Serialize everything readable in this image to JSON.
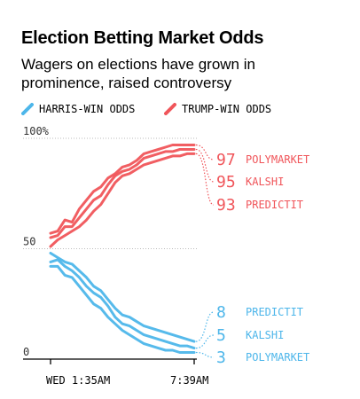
{
  "header": {
    "title": "Election Betting Market Odds",
    "subtitle": "Wagers on elections have grown in prominence, raised controversy"
  },
  "colors": {
    "harris": "#4db6ea",
    "trump": "#f0555a",
    "axis": "#000000",
    "grid": "#bbbbbb"
  },
  "chart_data": {
    "type": "line",
    "title": "Election Betting Market Odds",
    "subtitle": "Wagers on elections have grown in prominence, raised controversy",
    "legend": [
      {
        "label": "HARRIS-WIN ODDS",
        "color": "#4db6ea",
        "icon": "slash-icon"
      },
      {
        "label": "TRUMP-WIN ODDS",
        "color": "#f0555a",
        "icon": "slash-icon"
      }
    ],
    "legend_position": "top-left",
    "ylim": [
      0,
      100
    ],
    "yticks": [
      {
        "value": 100,
        "label": "100%"
      },
      {
        "value": 50,
        "label": "50"
      },
      {
        "value": 0,
        "label": "0"
      }
    ],
    "xticks": [
      {
        "value": 0,
        "label": "WED 1:35AM"
      },
      {
        "value": 1,
        "label": "7:39AM"
      }
    ],
    "x": [
      0,
      0.05,
      0.1,
      0.15,
      0.2,
      0.25,
      0.3,
      0.35,
      0.4,
      0.45,
      0.5,
      0.55,
      0.6,
      0.65,
      0.7,
      0.75,
      0.8,
      0.85,
      0.9,
      0.95,
      1.0
    ],
    "grid": true,
    "series": [
      {
        "name": "POLYMARKET",
        "party": "trump",
        "values": [
          57,
          58,
          63,
          62,
          68,
          72,
          76,
          78,
          82,
          84,
          87,
          88,
          90,
          93,
          94,
          95,
          96,
          97,
          97,
          97,
          97
        ],
        "end_label": "97"
      },
      {
        "name": "KALSHI",
        "party": "trump",
        "values": [
          55,
          56,
          60,
          60,
          64,
          68,
          72,
          74,
          79,
          83,
          85,
          86,
          88,
          91,
          92,
          93,
          94,
          94,
          95,
          95,
          95
        ],
        "end_label": "95"
      },
      {
        "name": "PREDICTIT",
        "party": "trump",
        "values": [
          51,
          54,
          56,
          58,
          60,
          63,
          67,
          70,
          75,
          80,
          83,
          84,
          86,
          88,
          89,
          90,
          91,
          92,
          92,
          93,
          93
        ],
        "end_label": "93"
      },
      {
        "name": "PREDICTIT",
        "party": "harris",
        "values": [
          48,
          46,
          44,
          43,
          40,
          37,
          33,
          31,
          27,
          23,
          20,
          19,
          17,
          15,
          14,
          13,
          12,
          11,
          10,
          9,
          8
        ],
        "end_label": "8"
      },
      {
        "name": "KALSHI",
        "party": "harris",
        "values": [
          44,
          45,
          42,
          40,
          37,
          33,
          30,
          28,
          24,
          19,
          16,
          15,
          13,
          11,
          10,
          9,
          8,
          7,
          6,
          6,
          5
        ],
        "end_label": "5"
      },
      {
        "name": "POLYMARKET",
        "party": "harris",
        "values": [
          42,
          42,
          38,
          37,
          33,
          29,
          25,
          23,
          19,
          16,
          13,
          11,
          9,
          7,
          6,
          5,
          4,
          4,
          3,
          3,
          3
        ],
        "end_label": "3"
      }
    ]
  }
}
